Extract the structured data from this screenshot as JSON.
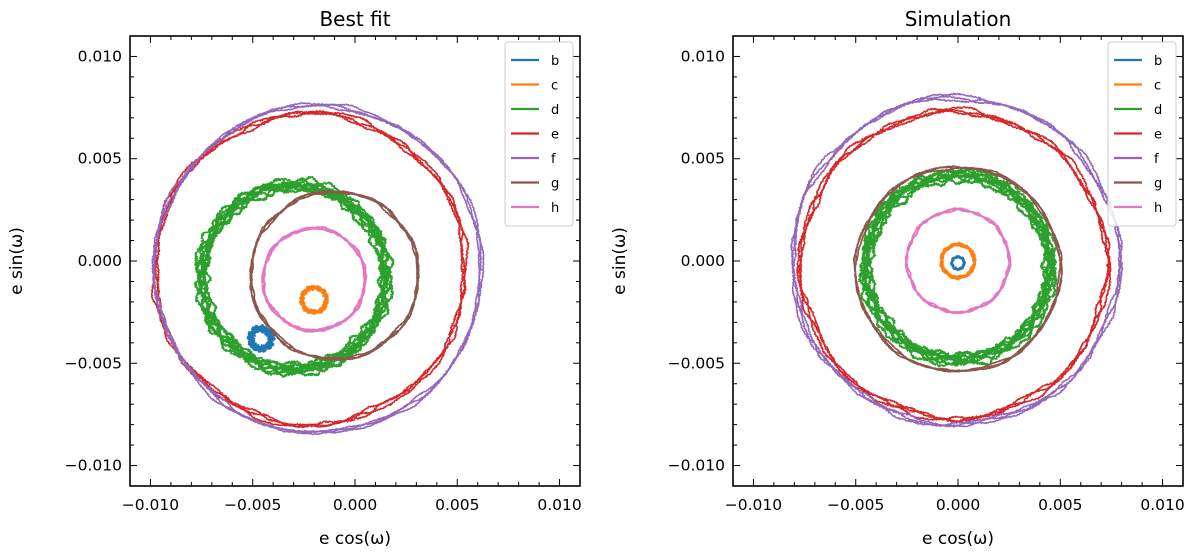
{
  "chart_data": [
    {
      "type": "line",
      "title": "Best fit",
      "xlabel": "e cos(ω)",
      "ylabel": "e sin(ω)",
      "xlim": [
        -0.011,
        0.011
      ],
      "ylim": [
        -0.011,
        0.011
      ],
      "xticks": [
        "−0.010",
        "−0.005",
        "0.000",
        "0.005",
        "0.010"
      ],
      "yticks": [
        "0.010",
        "0.005",
        "0.000",
        "−0.005",
        "−0.010"
      ],
      "legend_position": "top-right",
      "series": [
        {
          "name": "b",
          "color": "#1f77b4",
          "center": [
            -0.0046,
            -0.0038
          ],
          "radius": 0.0005,
          "noise": 0.00015,
          "loops": 6
        },
        {
          "name": "c",
          "color": "#ff7f0e",
          "center": [
            -0.002,
            -0.0019
          ],
          "radius": 0.0006,
          "noise": 0.0001,
          "loops": 6
        },
        {
          "name": "d",
          "color": "#2ca02c",
          "center": [
            -0.003,
            -0.0008
          ],
          "radius": 0.0045,
          "noise": 0.00035,
          "loops": 8
        },
        {
          "name": "e",
          "color": "#d62728",
          "center": [
            -0.0022,
            -0.0004
          ],
          "radius": 0.0076,
          "noise": 0.0002,
          "loops": 3
        },
        {
          "name": "f",
          "color": "#9467bd",
          "center": [
            -0.0018,
            -0.0004
          ],
          "radius": 0.008,
          "noise": 0.00015,
          "loops": 3
        },
        {
          "name": "g",
          "color": "#8c564b",
          "center": [
            -0.001,
            -0.0007
          ],
          "radius": 0.0041,
          "noise": 0.0001,
          "loops": 3
        },
        {
          "name": "h",
          "color": "#e377c2",
          "center": [
            -0.002,
            -0.0009
          ],
          "radius": 0.0025,
          "noise": 8e-05,
          "loops": 4
        }
      ]
    },
    {
      "type": "line",
      "title": "Simulation",
      "xlabel": "e cos(ω)",
      "ylabel": "e sin(ω)",
      "xlim": [
        -0.011,
        0.011
      ],
      "ylim": [
        -0.011,
        0.011
      ],
      "xticks": [
        "−0.010",
        "−0.005",
        "0.000",
        "0.005",
        "0.010"
      ],
      "yticks": [
        "0.010",
        "0.005",
        "0.000",
        "−0.005",
        "−0.010"
      ],
      "legend_position": "top-right",
      "series": [
        {
          "name": "b",
          "color": "#1f77b4",
          "center": [
            0.0,
            -0.0001
          ],
          "radius": 0.0003,
          "noise": 5e-05,
          "loops": 4
        },
        {
          "name": "c",
          "color": "#ff7f0e",
          "center": [
            0.0,
            0.0
          ],
          "radius": 0.0008,
          "noise": 8e-05,
          "loops": 5
        },
        {
          "name": "d",
          "color": "#2ca02c",
          "center": [
            0.0,
            -0.0003
          ],
          "radius": 0.0045,
          "noise": 0.00035,
          "loops": 8
        },
        {
          "name": "e",
          "color": "#d62728",
          "center": [
            -0.0002,
            -0.0002
          ],
          "radius": 0.0075,
          "noise": 0.0002,
          "loops": 3
        },
        {
          "name": "f",
          "color": "#9467bd",
          "center": [
            -0.0001,
            0.0
          ],
          "radius": 0.008,
          "noise": 0.00018,
          "loops": 3
        },
        {
          "name": "g",
          "color": "#8c564b",
          "center": [
            0.0,
            -0.0004
          ],
          "radius": 0.005,
          "noise": 0.0001,
          "loops": 3
        },
        {
          "name": "h",
          "color": "#e377c2",
          "center": [
            0.0,
            0.0
          ],
          "radius": 0.0025,
          "noise": 8e-05,
          "loops": 3
        }
      ]
    }
  ]
}
